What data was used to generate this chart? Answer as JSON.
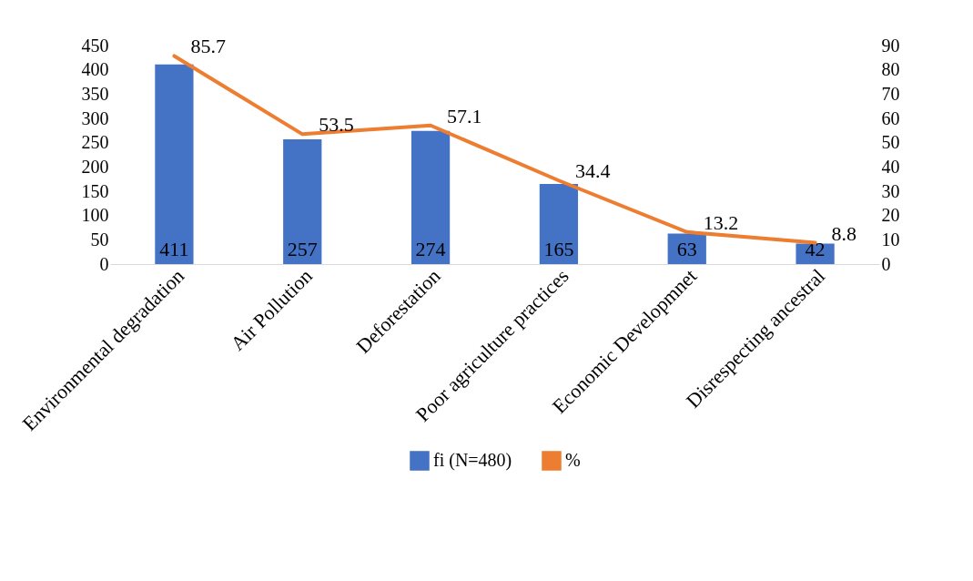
{
  "chart_data": {
    "type": "bar",
    "categories": [
      "Environmental degradation",
      "Air Pollution",
      "Deforestation",
      "Poor agriculture practices",
      "Economic Developmnet",
      "Disrespecting ancestral"
    ],
    "series": [
      {
        "name": "fi (N=480)",
        "type": "bar",
        "color": "#4472c4",
        "values": [
          411,
          257,
          274,
          165,
          63,
          42
        ]
      },
      {
        "name": "%",
        "type": "line",
        "axis": "y2",
        "color": "#ed7d31",
        "values": [
          85.7,
          53.5,
          57.1,
          34.4,
          13.2,
          8.8
        ]
      }
    ],
    "ylim": [
      0,
      450
    ],
    "yticks": [
      0,
      50,
      100,
      150,
      200,
      250,
      300,
      350,
      400,
      450
    ],
    "y2lim": [
      0,
      90
    ],
    "y2ticks": [
      0,
      10,
      20,
      30,
      40,
      50,
      60,
      70,
      80,
      90
    ],
    "data_labels": true,
    "legend": "bottom",
    "grid": false
  }
}
